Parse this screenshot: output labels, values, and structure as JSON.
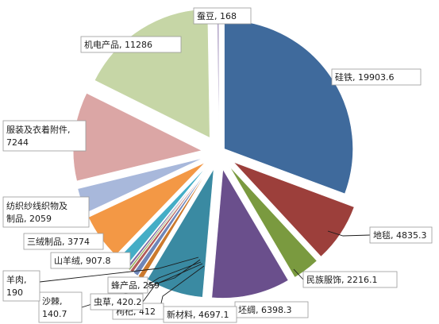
{
  "chart_data": {
    "type": "pie",
    "title": "",
    "slices": [
      {
        "name": "硅铁",
        "value": 19903.6,
        "color": "#3f6a9c"
      },
      {
        "name": "地毯",
        "value": 4835.3,
        "color": "#9c3f3b"
      },
      {
        "name": "民族服饰",
        "value": 2216.1,
        "color": "#7a9a3f"
      },
      {
        "name": "坯绸",
        "value": 6398.3,
        "color": "#6a4f8c"
      },
      {
        "name": "新材料",
        "value": 4697.1,
        "color": "#3a8aa2"
      },
      {
        "name": "枸杞",
        "value": 412,
        "color": "#cc7a2d"
      },
      {
        "name": "虫草",
        "value": 420.2,
        "color": "#6f86b8"
      },
      {
        "name": "蜂产品",
        "value": 259,
        "color": "#b35c59"
      },
      {
        "name": "沙棘",
        "value": 140.7,
        "color": "#93ae55"
      },
      {
        "name": "羊肉",
        "value": 190,
        "color": "#7e6aa2"
      },
      {
        "name": "山羊绒",
        "value": 907.8,
        "color": "#44adc6"
      },
      {
        "name": "三绒制品",
        "value": 3774,
        "color": "#f39845"
      },
      {
        "name": "纺织纱线织物及制品",
        "value": 2059,
        "color": "#a8b8db"
      },
      {
        "name": "服装及衣着附件",
        "value": 7244,
        "color": "#dba6a5"
      },
      {
        "name": "机电产品",
        "value": 11286,
        "color": "#c6d6a6"
      },
      {
        "name": "蚕豆",
        "value": 168,
        "color": "#b7abcb"
      }
    ],
    "labels": [
      {
        "lines": [
          "硅铁, 19903.6"
        ]
      },
      {
        "lines": [
          "地毯, 4835.3"
        ]
      },
      {
        "lines": [
          "民族服饰, 2216.1"
        ]
      },
      {
        "lines": [
          "坯绸, 6398.3"
        ]
      },
      {
        "lines": [
          "新材料, 4697.1"
        ]
      },
      {
        "lines": [
          "枸杞, 412"
        ]
      },
      {
        "lines": [
          "虫草, 420.2"
        ]
      },
      {
        "lines": [
          "蜂产品, 259"
        ]
      },
      {
        "lines": [
          "沙棘,",
          "140.7"
        ]
      },
      {
        "lines": [
          "羊肉,",
          "190"
        ]
      },
      {
        "lines": [
          "山羊绒, 907.8"
        ]
      },
      {
        "lines": [
          "三绒制品, 3774"
        ]
      },
      {
        "lines": [
          "纺织纱线织物及",
          "制品, 2059"
        ]
      },
      {
        "lines": [
          "服装及衣着附件,",
          "7244"
        ]
      },
      {
        "lines": [
          "机电产品, 11286"
        ]
      },
      {
        "lines": [
          "蚕豆, 168"
        ]
      }
    ]
  }
}
